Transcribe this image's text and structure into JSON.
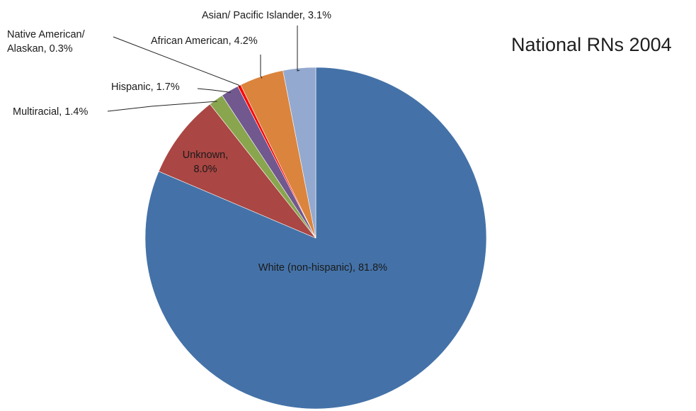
{
  "chart_data": {
    "type": "pie",
    "title": "National RNs 2004",
    "start_angle_deg": 0,
    "direction": "clockwise",
    "slices": [
      {
        "name": "White (non-hispanic)",
        "value": 81.8,
        "label": "White (non-hispanic), 81.8%",
        "color": "#4472a8"
      },
      {
        "name": "Unknown",
        "value": 8.0,
        "label": "Unknown, 8.0%",
        "label_lines": [
          "Unknown,",
          "8.0%"
        ],
        "color": "#aa4643"
      },
      {
        "name": "Multiracial",
        "value": 1.4,
        "label": "Multiracial, 1.4%",
        "color": "#89a54e"
      },
      {
        "name": "Hispanic",
        "value": 1.7,
        "label": "Hispanic, 1.7%",
        "color": "#71588f"
      },
      {
        "name": "Native American/ Alaskan",
        "value": 0.3,
        "label": "Native American/ Alaskan, 0.3%",
        "label_lines": [
          "Native American/",
          "Alaskan, 0.3%"
        ],
        "color": "#ff0000"
      },
      {
        "name": "African American",
        "value": 4.2,
        "label": "African American, 4.2%",
        "color": "#db843d"
      },
      {
        "name": "Asian/ Pacific Islander",
        "value": 3.1,
        "label": "Asian/ Pacific Islander, 3.1%",
        "color": "#93a9cf"
      }
    ],
    "legend": "none"
  }
}
